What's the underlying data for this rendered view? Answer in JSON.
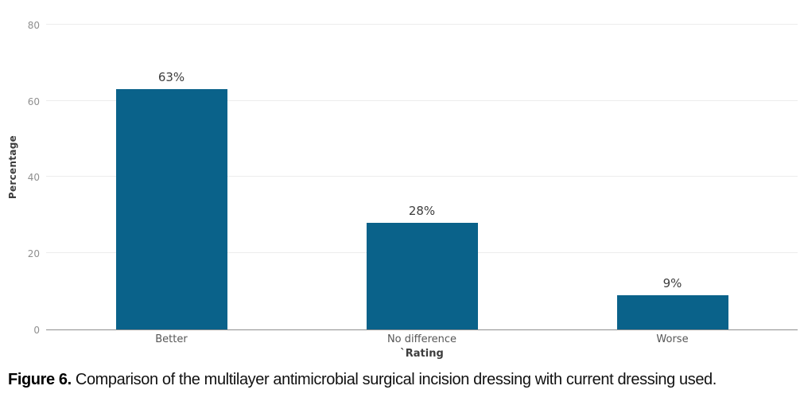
{
  "chart_data": {
    "type": "bar",
    "categories": [
      "Better",
      "No difference",
      "Worse"
    ],
    "values": [
      63,
      28,
      9
    ],
    "value_labels": [
      "63%",
      "28%",
      "9%"
    ],
    "title": "",
    "xlabel": "`Rating",
    "ylabel": "Percentage",
    "ylim": [
      0,
      85
    ],
    "yticks": [
      0,
      20,
      40,
      60,
      80
    ],
    "grid": "horizontal",
    "legend": "none",
    "colors": {
      "bar": "#0a628a",
      "gridline": "#ececec",
      "axis_line": "#8f8f8f",
      "tick_label": "#8f8f8f",
      "category_label": "#565656",
      "value_label": "#3d3d3d",
      "axis_title": "#3d3d3d"
    }
  },
  "caption": {
    "label": "Figure 6.",
    "text": " Comparison of the multilayer antimicrobial surgical incision dressing with current dressing used."
  }
}
